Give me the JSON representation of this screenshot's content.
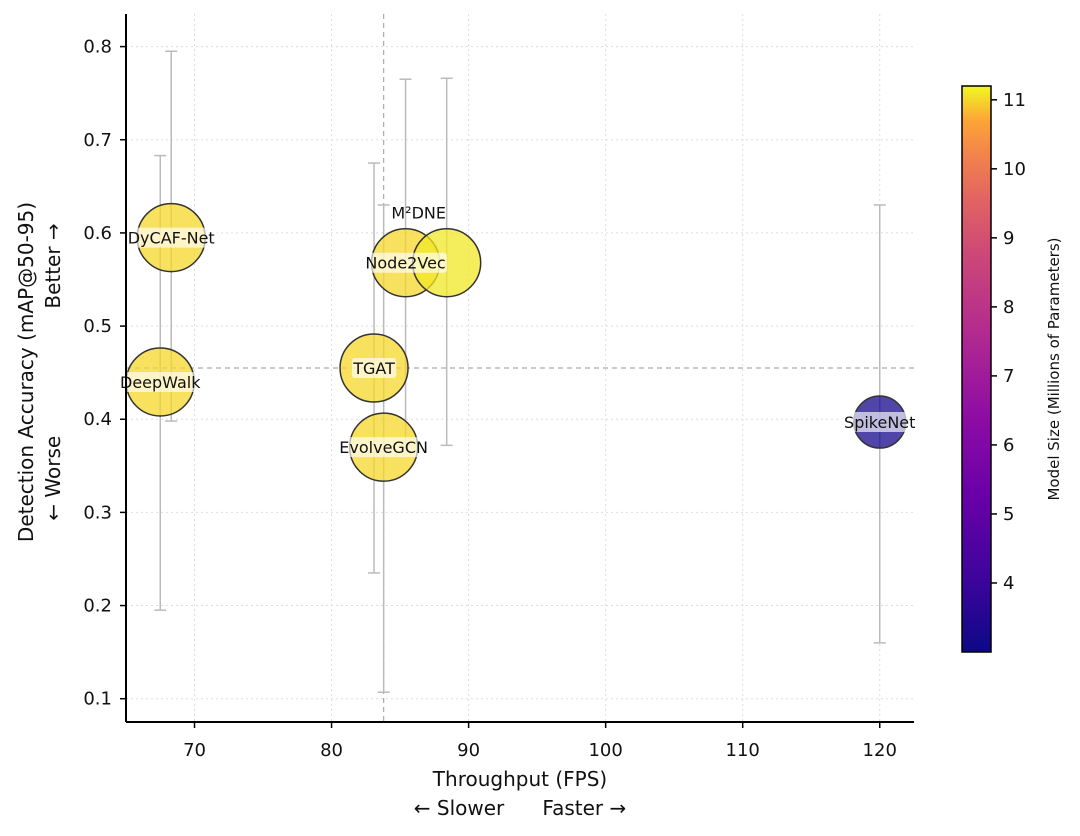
{
  "chart_data": {
    "type": "scatter",
    "title": "",
    "xlabel": "Throughput (FPS)",
    "xlabel_sub": "← Slower      Faster →",
    "ylabel": "Detection Accuracy (mAP@50-95)",
    "ylabel_sub": "← Worse                    Better →",
    "xlim": [
      65,
      122.5
    ],
    "ylim": [
      0.075,
      0.835
    ],
    "xticks": [
      70,
      80,
      90,
      100,
      110,
      120
    ],
    "yticks": [
      0.1,
      0.2,
      0.3,
      0.4,
      0.5,
      0.6,
      0.7,
      0.8
    ],
    "grid": true,
    "reference_lines": {
      "x": 83.8,
      "y": 0.455
    },
    "colorbar": {
      "label": "Model Size (Millions of Parameters)",
      "min": 3.0,
      "max": 11.2,
      "ticks": [
        4,
        5,
        6,
        7,
        8,
        9,
        10,
        11
      ],
      "colormap": "plasma"
    },
    "points": [
      {
        "name": "DyCAF-Net",
        "label": "DyCAF-Net",
        "x": 68.3,
        "y": 0.595,
        "err_low": 0.398,
        "err_high": 0.795,
        "size": 11.0
      },
      {
        "name": "DeepWalk",
        "label": "DeepWalk",
        "x": 67.5,
        "y": 0.44,
        "err_low": 0.195,
        "err_high": 0.683,
        "size": 11.0
      },
      {
        "name": "Node2Vec",
        "label": "Node2Vec",
        "x": 85.4,
        "y": 0.568,
        "err_low": 0.372,
        "err_high": 0.765,
        "size": 11.0
      },
      {
        "name": "M2DNE",
        "label": "M²DNE",
        "x": 88.4,
        "y": 0.568,
        "err_low": 0.372,
        "err_high": 0.766,
        "size": 11.1
      },
      {
        "name": "TGAT",
        "label": "TGAT",
        "x": 83.1,
        "y": 0.455,
        "err_low": 0.235,
        "err_high": 0.675,
        "size": 11.0
      },
      {
        "name": "EvolveGCN",
        "label": "EvolveGCN",
        "x": 83.8,
        "y": 0.37,
        "err_low": 0.107,
        "err_high": 0.63,
        "size": 11.0
      },
      {
        "name": "SpikeNet",
        "label": "SpikeNet",
        "x": 120.0,
        "y": 0.397,
        "err_low": 0.16,
        "err_high": 0.63,
        "size": 3.2
      }
    ]
  }
}
